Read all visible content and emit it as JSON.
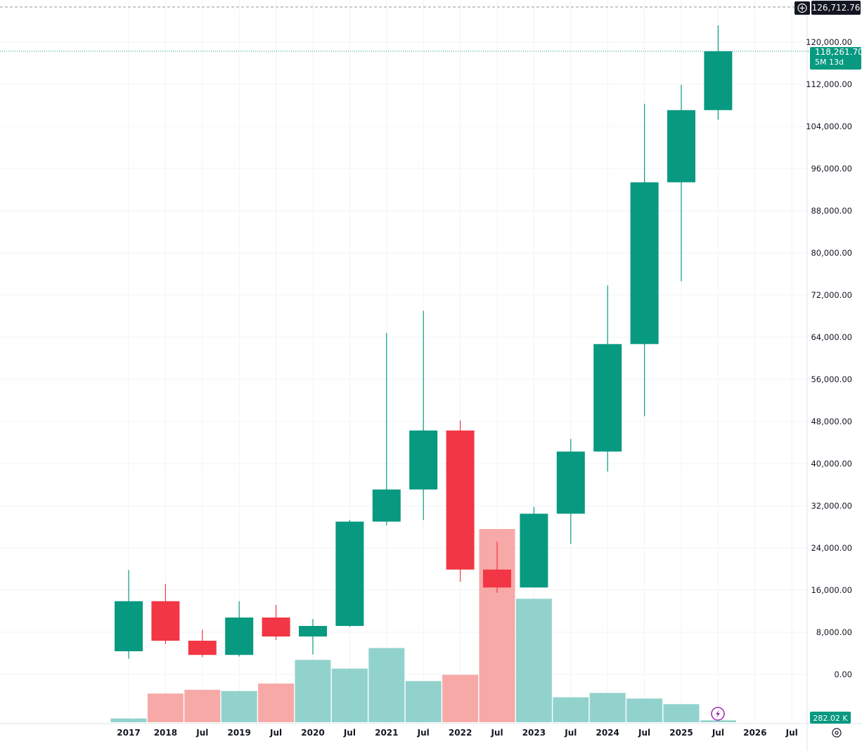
{
  "chart_data": {
    "type": "candlestick",
    "interval": "6M",
    "y_axis": {
      "ticks": [
        "120,000.00",
        "112,000.00",
        "104,000.00",
        "96,000.00",
        "88,000.00",
        "80,000.00",
        "72,000.00",
        "64,000.00",
        "56,000.00",
        "48,000.00",
        "40,000.00",
        "32,000.00",
        "24,000.00",
        "16,000.00",
        "8,000.00",
        "0.00"
      ],
      "tick_values": [
        120000,
        112000,
        104000,
        96000,
        88000,
        80000,
        72000,
        64000,
        56000,
        48000,
        40000,
        32000,
        24000,
        16000,
        8000,
        0
      ],
      "range": [
        0,
        128000
      ]
    },
    "x_axis": {
      "labels": [
        "2017",
        "2018",
        "Jul",
        "2019",
        "Jul",
        "2020",
        "Jul",
        "2021",
        "Jul",
        "2022",
        "Jul",
        "2023",
        "Jul",
        "2024",
        "Jul",
        "2025",
        "Jul",
        "2026",
        "Jul"
      ],
      "label_period_index": [
        0,
        1,
        2,
        3,
        4,
        5,
        6,
        7,
        8,
        9,
        10,
        11,
        12,
        13,
        14,
        15,
        16,
        17,
        18
      ],
      "bold_year_labels": [
        "2017",
        "2018",
        "2019",
        "2020",
        "2021",
        "2022",
        "2023",
        "2024",
        "2025",
        "2026"
      ]
    },
    "candles": [
      {
        "period": "2017 H2",
        "open": 4400,
        "high": 19800,
        "low": 3000,
        "close": 13900
      },
      {
        "period": "2018 H1",
        "open": 13900,
        "high": 17200,
        "low": 5800,
        "close": 6400
      },
      {
        "period": "2018 H2",
        "open": 6400,
        "high": 8500,
        "low": 3300,
        "close": 3700
      },
      {
        "period": "2019 H1",
        "open": 3700,
        "high": 13900,
        "low": 3400,
        "close": 10800
      },
      {
        "period": "2019 H2",
        "open": 10800,
        "high": 13200,
        "low": 6500,
        "close": 7200
      },
      {
        "period": "2020 H1",
        "open": 7200,
        "high": 10500,
        "low": 3800,
        "close": 9200
      },
      {
        "period": "2020 H2",
        "open": 9200,
        "high": 29300,
        "low": 9000,
        "close": 29000
      },
      {
        "period": "2021 H1",
        "open": 29000,
        "high": 64800,
        "low": 28300,
        "close": 35100
      },
      {
        "period": "2021 H2",
        "open": 35100,
        "high": 69000,
        "low": 29300,
        "close": 46300
      },
      {
        "period": "2022 H1",
        "open": 46300,
        "high": 48200,
        "low": 17600,
        "close": 19900
      },
      {
        "period": "2022 H2",
        "open": 19900,
        "high": 25200,
        "low": 15500,
        "close": 16500
      },
      {
        "period": "2023 H1",
        "open": 16500,
        "high": 31800,
        "low": 16500,
        "close": 30500
      },
      {
        "period": "2023 H2",
        "open": 30500,
        "high": 44700,
        "low": 24800,
        "close": 42300
      },
      {
        "period": "2024 H1",
        "open": 42300,
        "high": 73800,
        "low": 38500,
        "close": 62700
      },
      {
        "period": "2024 H2",
        "open": 62700,
        "high": 108300,
        "low": 49000,
        "close": 93400
      },
      {
        "period": "2025 H1",
        "open": 93400,
        "high": 111900,
        "low": 74600,
        "close": 107100
      },
      {
        "period": "2025 H2",
        "open": 107100,
        "high": 123200,
        "low": 105300,
        "close": 118261.7
      }
    ],
    "volume": {
      "values": [
        6,
        46,
        52,
        50,
        62,
        100,
        86,
        119,
        66,
        76,
        310,
        198,
        40,
        47,
        38,
        29,
        3
      ],
      "up_flags": [
        true,
        false,
        false,
        true,
        false,
        true,
        true,
        true,
        true,
        false,
        false,
        true,
        true,
        true,
        true,
        true,
        true
      ],
      "max_reference": 310
    },
    "annotations": {
      "crosshair_price": "126,712.76",
      "last_price": "118,261.70",
      "time_to_close": "5M 13d",
      "last_volume": "282.02 K"
    },
    "colors": {
      "up": "#089981",
      "down": "#f23645",
      "up_volume": "#92d2cc",
      "down_volume": "#f7a9a7",
      "grid": "#f0f3fa",
      "crosshair": "#9598a1",
      "badge_dark": "#131722"
    },
    "grid": true
  }
}
